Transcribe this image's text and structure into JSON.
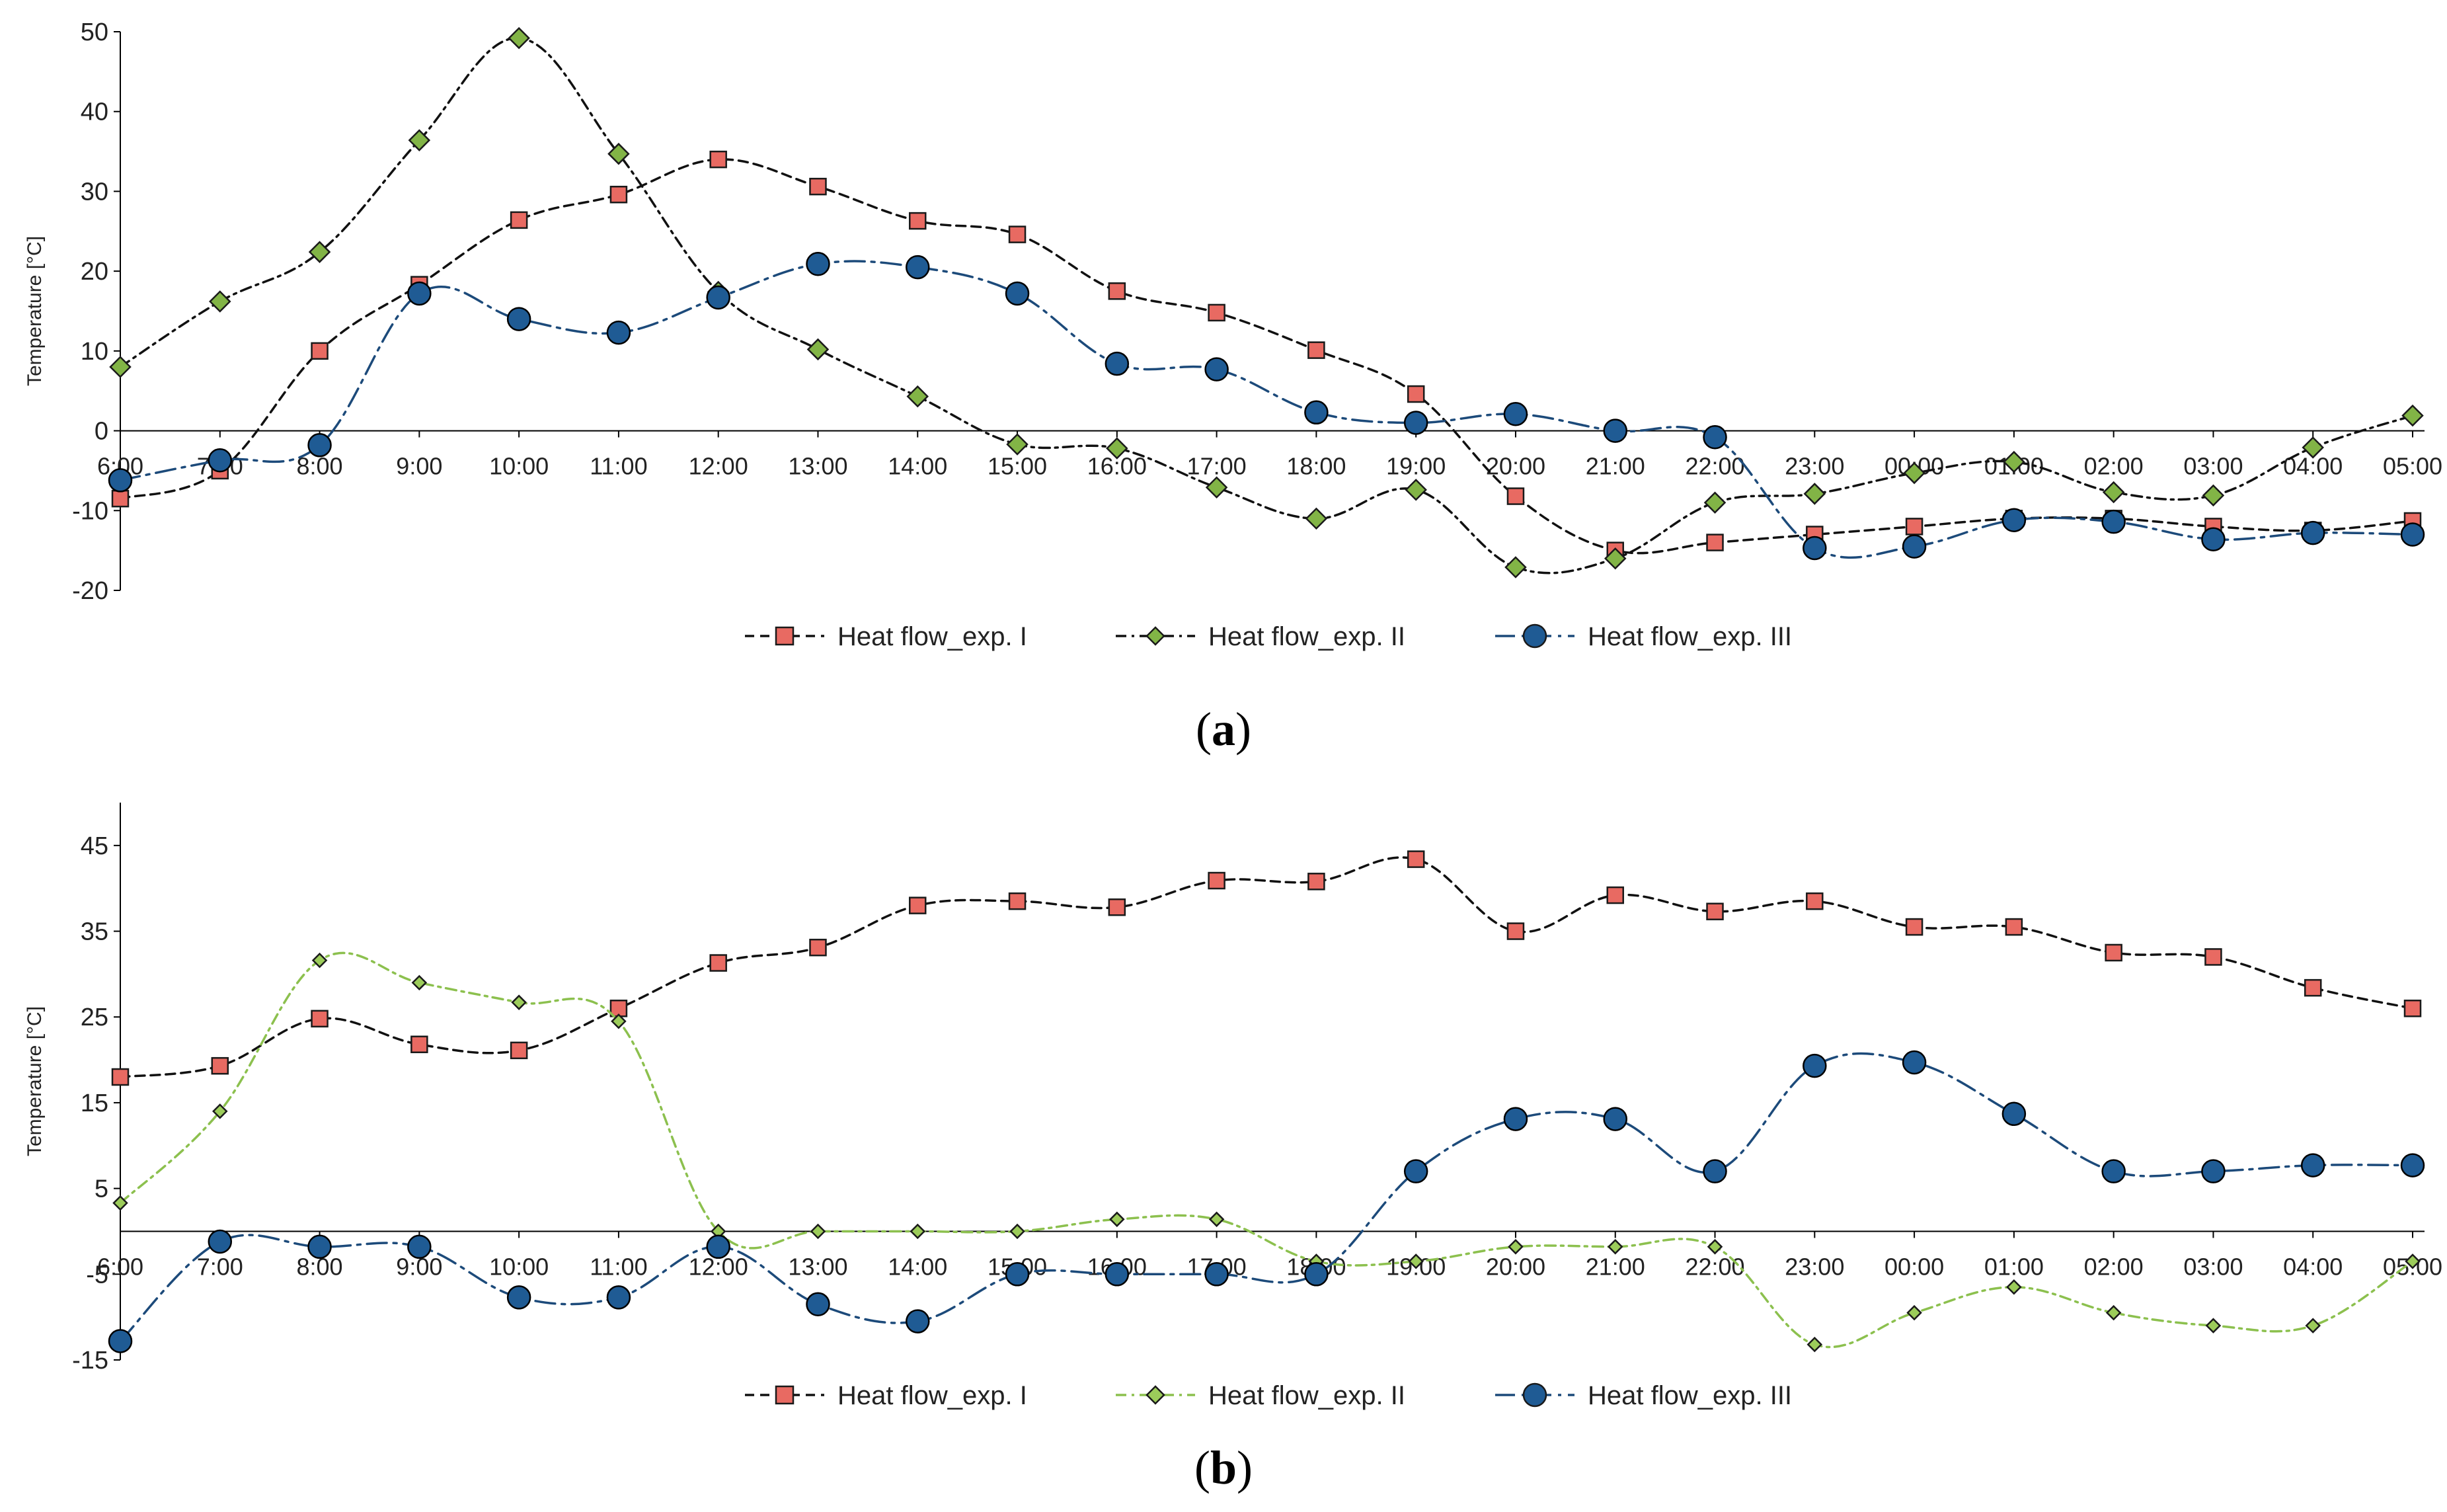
{
  "chart_data": [
    {
      "type": "line",
      "panel": "a",
      "caption": "(a)",
      "caption_letter": "a",
      "ylabel": "Temperature [°C]",
      "xlabel": "",
      "ylim": [
        -20,
        50
      ],
      "yticks": [
        -20,
        -10,
        0,
        10,
        20,
        30,
        40,
        50
      ],
      "grid": false,
      "legend_position": "bottom-center",
      "categories": [
        "6:00",
        "7:00",
        "8:00",
        "9:00",
        "10:00",
        "11:00",
        "12:00",
        "13:00",
        "14:00",
        "15:00",
        "16:00",
        "17:00",
        "18:00",
        "19:00",
        "20:00",
        "21:00",
        "22:00",
        "23:00",
        "00:00",
        "01:00",
        "02:00",
        "03:00",
        "04:00",
        "05:00"
      ],
      "series": [
        {
          "name": "Heat flow_exp. I",
          "color": "#e05050",
          "marker": "square",
          "dash": "dashed",
          "values": [
            -8.5,
            -5,
            10,
            18.3,
            26.4,
            29.6,
            34,
            30.6,
            26.3,
            24.6,
            17.5,
            14.8,
            10.1,
            4.6,
            -8.2,
            -15,
            -14,
            -13,
            -12,
            -11,
            -11,
            -12,
            -12.5,
            -11.3
          ]
        },
        {
          "name": "Heat flow_exp. II",
          "color": "#82b446",
          "marker": "diamond",
          "dash": "dash-dot",
          "values": [
            8,
            16.2,
            22.4,
            36.4,
            49.2,
            34.7,
            17.4,
            10.2,
            4.3,
            -1.7,
            -2.2,
            -7.1,
            -11,
            -7.4,
            -17.1,
            -16,
            -9,
            -7.9,
            -5.3,
            -3.9,
            -7.7,
            -8.1,
            -2.1,
            1.9
          ]
        },
        {
          "name": "Heat flow_exp. III",
          "color": "#1c4a7a",
          "marker": "circle",
          "dash": "long-dash-dot",
          "values": [
            -6.2,
            -3.7,
            -1.8,
            17.2,
            14,
            12.3,
            16.7,
            20.9,
            20.5,
            17.2,
            8.4,
            7.7,
            2.3,
            1,
            2.1,
            0,
            -0.8,
            -14.7,
            -14.5,
            -11.2,
            -11.4,
            -13.6,
            -12.8,
            -13
          ]
        }
      ]
    },
    {
      "type": "line",
      "panel": "b",
      "caption": "(b)",
      "caption_letter": "b",
      "ylabel": "Temperature [°C]",
      "xlabel": "",
      "ylim": [
        -15,
        50
      ],
      "yticks": [
        -15,
        -5,
        5,
        15,
        25,
        35,
        45
      ],
      "grid": false,
      "legend_position": "bottom-center",
      "categories": [
        "6:00",
        "7:00",
        "8:00",
        "9:00",
        "10:00",
        "11:00",
        "12:00",
        "13:00",
        "14:00",
        "15:00",
        "16:00",
        "17:00",
        "18:00",
        "19:00",
        "20:00",
        "21:00",
        "22:00",
        "23:00",
        "00:00",
        "01:00",
        "02:00",
        "03:00",
        "04:00",
        "05:00"
      ],
      "series": [
        {
          "name": "Heat flow_exp. I",
          "color": "#e05050",
          "marker": "square",
          "dash": "dashed",
          "values": [
            18,
            19.3,
            24.8,
            21.8,
            21.1,
            26,
            31.3,
            33.1,
            38,
            38.5,
            37.8,
            40.9,
            40.8,
            43.4,
            35,
            39.2,
            37.3,
            38.5,
            35.5,
            35.5,
            32.5,
            32,
            28.4,
            26
          ]
        },
        {
          "name": "Heat flow_exp. II",
          "color": "#9ccc5a",
          "marker": "diamond",
          "dash": "dash-dot",
          "values": [
            3.3,
            14,
            31.6,
            29,
            26.7,
            24.5,
            0,
            0,
            0,
            0,
            1.4,
            1.4,
            -3.5,
            -3.5,
            -1.8,
            -1.8,
            -1.8,
            -13.2,
            -9.5,
            -6.5,
            -9.5,
            -11,
            -11,
            -3.5
          ]
        },
        {
          "name": "Heat flow_exp. III",
          "color": "#1c4a7a",
          "marker": "circle",
          "dash": "long-dash-dot",
          "values": [
            -12.8,
            -1.2,
            -1.8,
            -1.8,
            -7.7,
            -7.7,
            -1.8,
            -8.5,
            -10.5,
            -5,
            -5,
            -5,
            -5,
            7,
            13.1,
            13.1,
            7,
            19.3,
            19.7,
            13.7,
            7,
            7,
            7.7,
            7.7
          ]
        }
      ]
    }
  ]
}
